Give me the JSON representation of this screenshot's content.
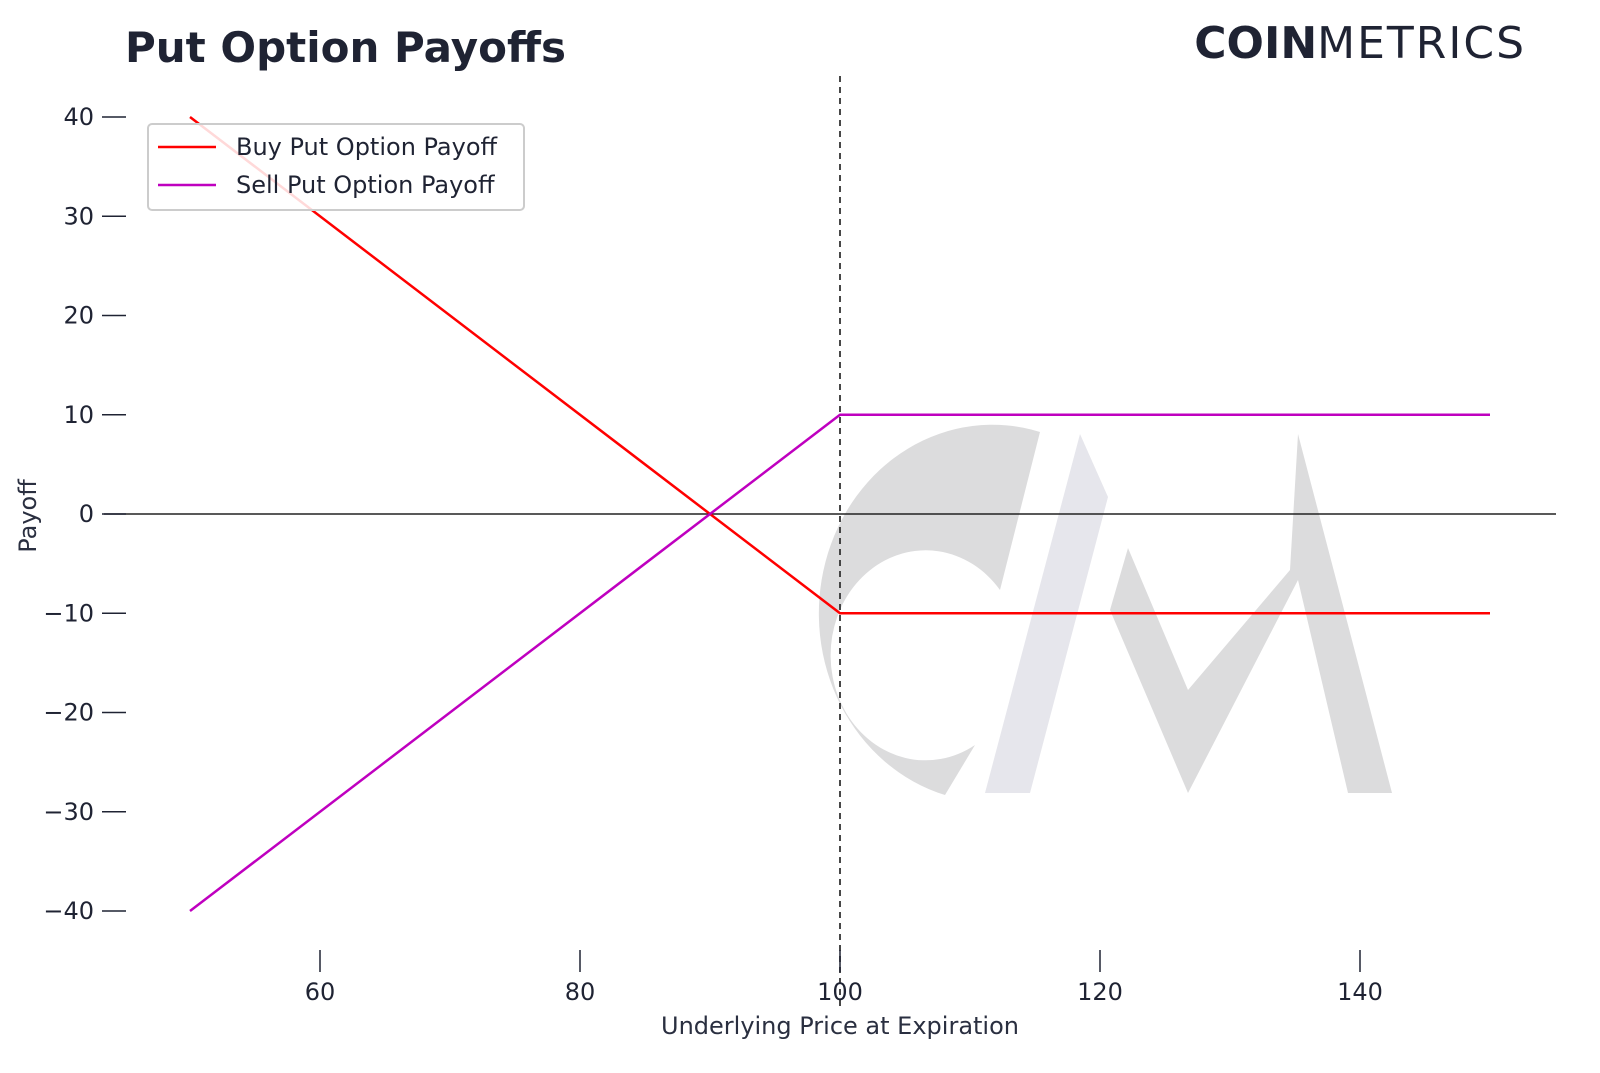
{
  "brand": {
    "bold": "COIN",
    "light": "METRICS"
  },
  "chart_data": {
    "type": "line",
    "title": "Put Option Payoffs",
    "xlabel": "Underlying Price at Expiration",
    "ylabel": "Payoff",
    "xlim": [
      45,
      155
    ],
    "ylim": [
      -45,
      45
    ],
    "xticks": [
      60,
      80,
      100,
      120,
      140
    ],
    "yticks": [
      40,
      30,
      20,
      10,
      0,
      -10,
      -20,
      -30,
      -40
    ],
    "ytick_labels": [
      "40",
      "30",
      "20",
      "10",
      "0",
      "−10",
      "−20",
      "−30",
      "−40"
    ],
    "grid": false,
    "legend_position": "top-left",
    "reference_lines": [
      {
        "orientation": "vertical",
        "value": 100,
        "style": "dashed",
        "color": "#333333"
      },
      {
        "orientation": "horizontal",
        "value": 0,
        "style": "solid",
        "color": "#222222"
      }
    ],
    "series": [
      {
        "name": "Buy Put Option Payoff",
        "color": "#ff0000",
        "x": [
          50,
          100,
          150
        ],
        "y": [
          40,
          -10,
          -10
        ]
      },
      {
        "name": "Sell Put Option Payoff",
        "color": "#bf00bf",
        "x": [
          50,
          100,
          150
        ],
        "y": [
          -40,
          10,
          10
        ]
      }
    ]
  }
}
